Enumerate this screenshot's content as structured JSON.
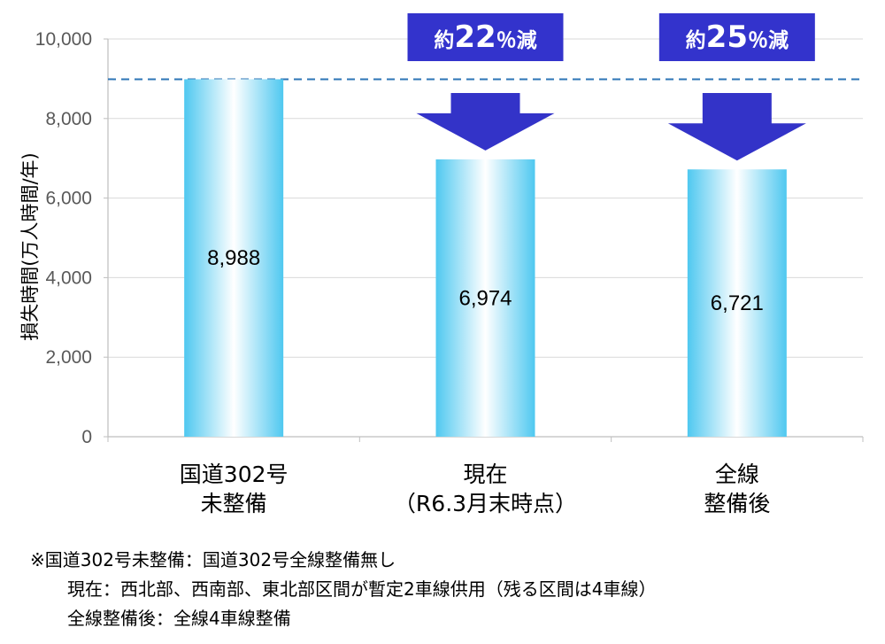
{
  "chart_data": {
    "type": "bar",
    "ylabel": "損失時間(万人時間/年)",
    "ylim": [
      0,
      10000
    ],
    "yticks": [
      "0",
      "2,000",
      "4,000",
      "6,000",
      "8,000",
      "10,000"
    ],
    "ytick_values": [
      0,
      2000,
      4000,
      6000,
      8000,
      10000
    ],
    "categories": [
      [
        "国道302号",
        "未整備"
      ],
      [
        "現在",
        "（R6.3月末時点）"
      ],
      [
        "全線",
        "整備後"
      ]
    ],
    "values": [
      8988,
      6974,
      6721
    ],
    "value_labels": [
      "8,988",
      "6,974",
      "6,721"
    ],
    "reference_line": 8988,
    "annotations": [
      {
        "category_index": 1,
        "text_prefix": "約",
        "text_number": "22",
        "text_suffix": "％減"
      },
      {
        "category_index": 2,
        "text_prefix": "約",
        "text_number": "25",
        "text_suffix": "％減"
      }
    ],
    "colors": {
      "bar_edge": "#4fc8f0",
      "bar_center": "#ffffff",
      "arrow": "#3333c8",
      "badge": "#3333cc",
      "reference_line": "#2e75b6",
      "grid": "#d9d9d9"
    }
  },
  "notes": [
    "※国道302号未整備：国道302号全線整備無し",
    "現在：西北部、西南部、東北部区間が暫定2車線供用（残る区間は4車線）",
    "全線整備後：全線4車線整備"
  ]
}
